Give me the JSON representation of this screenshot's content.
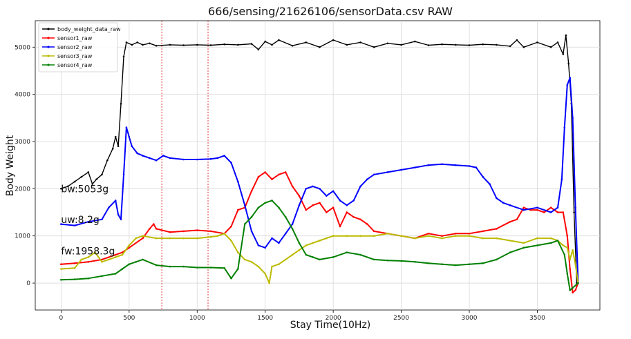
{
  "chart_data": {
    "type": "line",
    "title": "666/sensing/21626106/sensorData.csv RAW",
    "xlabel": "Stay Time(10Hz)",
    "ylabel": "Body Weight",
    "xlim": [
      -190,
      3960
    ],
    "ylim": [
      -570,
      5560
    ],
    "xticks": [
      0,
      500,
      1000,
      1500,
      2000,
      2500,
      3000,
      3500
    ],
    "yticks": [
      0,
      1000,
      2000,
      3000,
      4000,
      5000
    ],
    "grid": true,
    "legend_position": "top-left",
    "vlines": [
      {
        "x": 740,
        "color": "#e02020"
      },
      {
        "x": 1080,
        "color": "#e02020"
      }
    ],
    "annotations": [
      {
        "text": "bw:5053g",
        "x": 0,
        "y": 2000
      },
      {
        "text": "uw:8.2g",
        "x": 0,
        "y": 1350
      },
      {
        "text": "fw:1958.3g",
        "x": 0,
        "y": 680
      }
    ],
    "series": [
      {
        "name": "body_weight_data_raw",
        "color": "#000000",
        "points": [
          [
            0,
            2000
          ],
          [
            50,
            2050
          ],
          [
            100,
            2150
          ],
          [
            150,
            2250
          ],
          [
            200,
            2350
          ],
          [
            230,
            2100
          ],
          [
            260,
            2200
          ],
          [
            300,
            2300
          ],
          [
            340,
            2600
          ],
          [
            380,
            2850
          ],
          [
            400,
            3100
          ],
          [
            420,
            2900
          ],
          [
            440,
            3800
          ],
          [
            460,
            4800
          ],
          [
            480,
            5100
          ],
          [
            520,
            5050
          ],
          [
            560,
            5100
          ],
          [
            600,
            5050
          ],
          [
            650,
            5080
          ],
          [
            700,
            5030
          ],
          [
            800,
            5050
          ],
          [
            900,
            5040
          ],
          [
            1000,
            5050
          ],
          [
            1100,
            5040
          ],
          [
            1200,
            5060
          ],
          [
            1300,
            5050
          ],
          [
            1400,
            5070
          ],
          [
            1450,
            4950
          ],
          [
            1500,
            5120
          ],
          [
            1550,
            5050
          ],
          [
            1600,
            5150
          ],
          [
            1700,
            5030
          ],
          [
            1800,
            5100
          ],
          [
            1900,
            5000
          ],
          [
            2000,
            5150
          ],
          [
            2100,
            5050
          ],
          [
            2200,
            5100
          ],
          [
            2300,
            5000
          ],
          [
            2400,
            5080
          ],
          [
            2500,
            5050
          ],
          [
            2600,
            5120
          ],
          [
            2700,
            5040
          ],
          [
            2800,
            5060
          ],
          [
            2900,
            5050
          ],
          [
            3000,
            5040
          ],
          [
            3100,
            5060
          ],
          [
            3200,
            5050
          ],
          [
            3300,
            5020
          ],
          [
            3350,
            5150
          ],
          [
            3400,
            5000
          ],
          [
            3500,
            5100
          ],
          [
            3600,
            5000
          ],
          [
            3650,
            5100
          ],
          [
            3690,
            4850
          ],
          [
            3710,
            5250
          ],
          [
            3730,
            4650
          ],
          [
            3750,
            3800
          ],
          [
            3770,
            1500
          ],
          [
            3790,
            0
          ]
        ]
      },
      {
        "name": "sensor1_raw",
        "color": "#ff0000",
        "points": [
          [
            0,
            400
          ],
          [
            100,
            420
          ],
          [
            200,
            450
          ],
          [
            300,
            500
          ],
          [
            400,
            600
          ],
          [
            450,
            650
          ],
          [
            500,
            750
          ],
          [
            600,
            950
          ],
          [
            650,
            1150
          ],
          [
            680,
            1250
          ],
          [
            700,
            1150
          ],
          [
            800,
            1080
          ],
          [
            900,
            1100
          ],
          [
            1000,
            1120
          ],
          [
            1100,
            1100
          ],
          [
            1200,
            1050
          ],
          [
            1250,
            1200
          ],
          [
            1300,
            1550
          ],
          [
            1350,
            1600
          ],
          [
            1400,
            1950
          ],
          [
            1450,
            2250
          ],
          [
            1500,
            2350
          ],
          [
            1550,
            2200
          ],
          [
            1600,
            2300
          ],
          [
            1650,
            2350
          ],
          [
            1700,
            2050
          ],
          [
            1750,
            1850
          ],
          [
            1800,
            1550
          ],
          [
            1850,
            1650
          ],
          [
            1900,
            1700
          ],
          [
            1950,
            1500
          ],
          [
            2000,
            1600
          ],
          [
            2050,
            1200
          ],
          [
            2100,
            1500
          ],
          [
            2150,
            1400
          ],
          [
            2200,
            1350
          ],
          [
            2250,
            1250
          ],
          [
            2300,
            1100
          ],
          [
            2400,
            1050
          ],
          [
            2500,
            1000
          ],
          [
            2600,
            950
          ],
          [
            2700,
            1050
          ],
          [
            2800,
            1000
          ],
          [
            2900,
            1050
          ],
          [
            3000,
            1050
          ],
          [
            3100,
            1100
          ],
          [
            3200,
            1150
          ],
          [
            3300,
            1300
          ],
          [
            3350,
            1350
          ],
          [
            3400,
            1600
          ],
          [
            3450,
            1550
          ],
          [
            3500,
            1550
          ],
          [
            3550,
            1500
          ],
          [
            3600,
            1600
          ],
          [
            3650,
            1500
          ],
          [
            3690,
            1500
          ],
          [
            3720,
            1000
          ],
          [
            3740,
            300
          ],
          [
            3760,
            -200
          ],
          [
            3780,
            -150
          ],
          [
            3800,
            0
          ]
        ]
      },
      {
        "name": "sensor2_raw",
        "color": "#0000ff",
        "points": [
          [
            0,
            1250
          ],
          [
            100,
            1220
          ],
          [
            200,
            1300
          ],
          [
            300,
            1350
          ],
          [
            350,
            1600
          ],
          [
            400,
            1750
          ],
          [
            420,
            1450
          ],
          [
            440,
            1350
          ],
          [
            460,
            2300
          ],
          [
            480,
            3300
          ],
          [
            500,
            3100
          ],
          [
            520,
            2900
          ],
          [
            560,
            2750
          ],
          [
            600,
            2700
          ],
          [
            650,
            2650
          ],
          [
            700,
            2600
          ],
          [
            750,
            2700
          ],
          [
            800,
            2650
          ],
          [
            900,
            2620
          ],
          [
            1000,
            2620
          ],
          [
            1100,
            2630
          ],
          [
            1150,
            2650
          ],
          [
            1200,
            2700
          ],
          [
            1250,
            2550
          ],
          [
            1300,
            2150
          ],
          [
            1350,
            1650
          ],
          [
            1400,
            1100
          ],
          [
            1450,
            800
          ],
          [
            1500,
            750
          ],
          [
            1550,
            950
          ],
          [
            1600,
            850
          ],
          [
            1650,
            1050
          ],
          [
            1700,
            1250
          ],
          [
            1750,
            1650
          ],
          [
            1800,
            2000
          ],
          [
            1850,
            2050
          ],
          [
            1900,
            2000
          ],
          [
            1950,
            1850
          ],
          [
            2000,
            1950
          ],
          [
            2050,
            1750
          ],
          [
            2100,
            1650
          ],
          [
            2150,
            1750
          ],
          [
            2200,
            2050
          ],
          [
            2250,
            2200
          ],
          [
            2300,
            2300
          ],
          [
            2400,
            2350
          ],
          [
            2500,
            2400
          ],
          [
            2600,
            2450
          ],
          [
            2700,
            2500
          ],
          [
            2800,
            2520
          ],
          [
            2900,
            2500
          ],
          [
            3000,
            2480
          ],
          [
            3050,
            2450
          ],
          [
            3100,
            2250
          ],
          [
            3150,
            2100
          ],
          [
            3200,
            1800
          ],
          [
            3250,
            1700
          ],
          [
            3300,
            1650
          ],
          [
            3400,
            1550
          ],
          [
            3500,
            1600
          ],
          [
            3600,
            1500
          ],
          [
            3650,
            1600
          ],
          [
            3680,
            2200
          ],
          [
            3700,
            3300
          ],
          [
            3720,
            4200
          ],
          [
            3740,
            4350
          ],
          [
            3760,
            3500
          ],
          [
            3780,
            1600
          ],
          [
            3800,
            0
          ]
        ]
      },
      {
        "name": "sensor3_raw",
        "color": "#bbbb00",
        "points": [
          [
            0,
            300
          ],
          [
            100,
            320
          ],
          [
            150,
            500
          ],
          [
            200,
            550
          ],
          [
            250,
            650
          ],
          [
            300,
            450
          ],
          [
            350,
            500
          ],
          [
            400,
            550
          ],
          [
            450,
            600
          ],
          [
            500,
            800
          ],
          [
            550,
            950
          ],
          [
            600,
            1000
          ],
          [
            700,
            950
          ],
          [
            800,
            950
          ],
          [
            900,
            950
          ],
          [
            1000,
            950
          ],
          [
            1100,
            980
          ],
          [
            1150,
            1000
          ],
          [
            1200,
            1050
          ],
          [
            1250,
            900
          ],
          [
            1300,
            650
          ],
          [
            1350,
            500
          ],
          [
            1400,
            450
          ],
          [
            1450,
            350
          ],
          [
            1500,
            200
          ],
          [
            1530,
            0
          ],
          [
            1550,
            350
          ],
          [
            1600,
            400
          ],
          [
            1650,
            500
          ],
          [
            1700,
            600
          ],
          [
            1750,
            700
          ],
          [
            1800,
            800
          ],
          [
            1850,
            850
          ],
          [
            1900,
            900
          ],
          [
            1950,
            950
          ],
          [
            2000,
            1000
          ],
          [
            2100,
            1000
          ],
          [
            2200,
            1000
          ],
          [
            2300,
            1000
          ],
          [
            2400,
            1050
          ],
          [
            2500,
            1000
          ],
          [
            2600,
            950
          ],
          [
            2700,
            1000
          ],
          [
            2800,
            950
          ],
          [
            2900,
            1000
          ],
          [
            3000,
            1000
          ],
          [
            3100,
            950
          ],
          [
            3200,
            950
          ],
          [
            3300,
            900
          ],
          [
            3400,
            850
          ],
          [
            3500,
            950
          ],
          [
            3600,
            950
          ],
          [
            3650,
            900
          ],
          [
            3690,
            800
          ],
          [
            3720,
            750
          ],
          [
            3740,
            500
          ],
          [
            3760,
            700
          ],
          [
            3780,
            400
          ],
          [
            3800,
            0
          ]
        ]
      },
      {
        "name": "sensor4_raw",
        "color": "#008000",
        "points": [
          [
            0,
            70
          ],
          [
            100,
            80
          ],
          [
            200,
            100
          ],
          [
            300,
            150
          ],
          [
            400,
            200
          ],
          [
            450,
            300
          ],
          [
            500,
            400
          ],
          [
            550,
            450
          ],
          [
            600,
            500
          ],
          [
            700,
            380
          ],
          [
            800,
            350
          ],
          [
            900,
            350
          ],
          [
            1000,
            330
          ],
          [
            1100,
            330
          ],
          [
            1200,
            320
          ],
          [
            1250,
            100
          ],
          [
            1300,
            300
          ],
          [
            1350,
            1250
          ],
          [
            1400,
            1400
          ],
          [
            1450,
            1600
          ],
          [
            1500,
            1700
          ],
          [
            1550,
            1750
          ],
          [
            1600,
            1600
          ],
          [
            1650,
            1400
          ],
          [
            1700,
            1150
          ],
          [
            1750,
            850
          ],
          [
            1800,
            600
          ],
          [
            1850,
            550
          ],
          [
            1900,
            500
          ],
          [
            2000,
            550
          ],
          [
            2100,
            650
          ],
          [
            2200,
            600
          ],
          [
            2300,
            500
          ],
          [
            2400,
            480
          ],
          [
            2500,
            470
          ],
          [
            2600,
            450
          ],
          [
            2700,
            420
          ],
          [
            2800,
            400
          ],
          [
            2900,
            380
          ],
          [
            3000,
            400
          ],
          [
            3100,
            420
          ],
          [
            3200,
            500
          ],
          [
            3300,
            650
          ],
          [
            3400,
            750
          ],
          [
            3500,
            800
          ],
          [
            3600,
            850
          ],
          [
            3650,
            900
          ],
          [
            3700,
            600
          ],
          [
            3720,
            200
          ],
          [
            3740,
            -150
          ],
          [
            3760,
            -100
          ],
          [
            3780,
            -50
          ],
          [
            3800,
            0
          ]
        ]
      }
    ]
  }
}
